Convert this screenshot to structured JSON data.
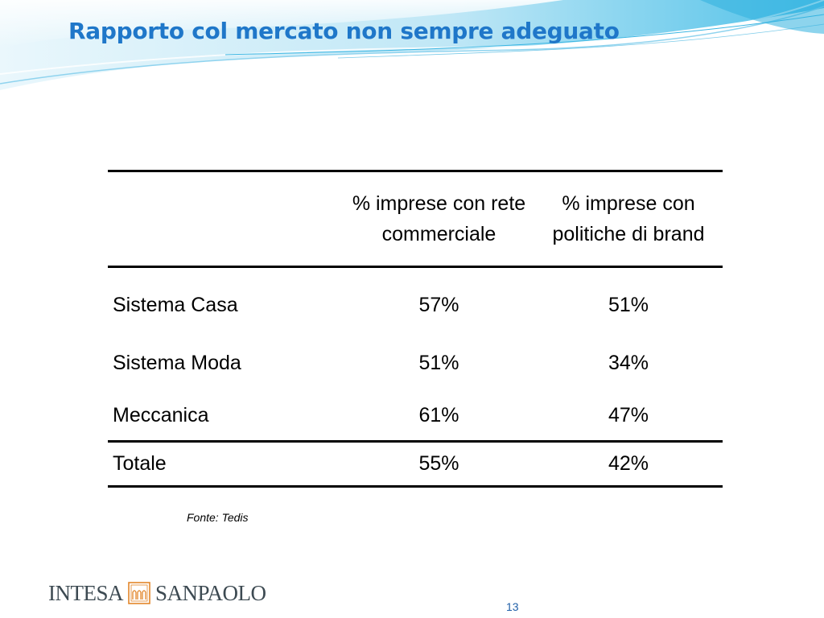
{
  "slide": {
    "title": "Rapporto col mercato non sempre adeguato",
    "page_number": "13"
  },
  "table": {
    "headers": [
      "",
      "% imprese con rete commerciale",
      "% imprese con politiche di brand"
    ],
    "rows": [
      {
        "label": "Sistema Casa",
        "rete": "57%",
        "brand": "51%"
      },
      {
        "label": "Sistema Moda",
        "rete": "51%",
        "brand": "34%"
      },
      {
        "label": "Meccanica",
        "rete": "61%",
        "brand": "47%"
      }
    ],
    "total": {
      "label": "Totale",
      "rete": "55%",
      "brand": "42%"
    }
  },
  "source_note": "Fonte: Tedis",
  "logo": {
    "left_word": "INTESA",
    "right_word": "SANPAOLO",
    "icon": "intesa-sanpaolo-arches-icon"
  },
  "colors": {
    "title": "#1f77c9",
    "wave_light": "#d4eef8",
    "wave_mid": "#8fd3ee",
    "wave_dark": "#3ab6e3",
    "page_number": "#1f5fa8",
    "logo_mark": "#e2862a"
  }
}
